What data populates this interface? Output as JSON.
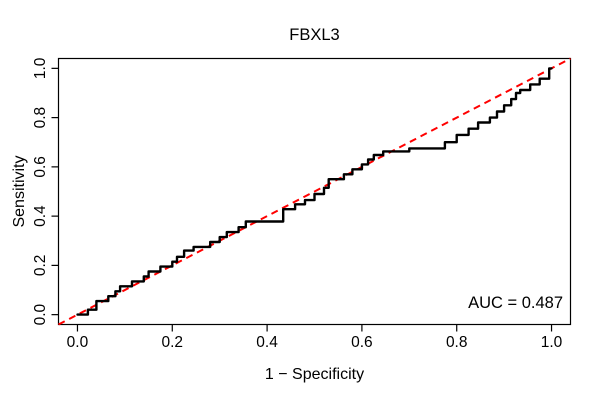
{
  "chart_data": {
    "type": "line",
    "title": "FBXL3",
    "xlabel": "1 − Specificity",
    "ylabel": "Sensitivity",
    "annotation": "AUC = 0.487",
    "xlim": [
      -0.04,
      1.04
    ],
    "ylim": [
      -0.04,
      1.04
    ],
    "xticks": [
      0.0,
      0.2,
      0.4,
      0.6,
      0.8,
      1.0
    ],
    "yticks": [
      0.0,
      0.2,
      0.4,
      0.6,
      0.8,
      1.0
    ],
    "tick_decimals": 1,
    "grid": false,
    "legend": "none",
    "colors": {
      "background": "#FFFFFF",
      "box": "#000000",
      "text": "#000000",
      "roc_curve": "#000000",
      "reference_line": "#FF0000"
    },
    "series": [
      {
        "name": "ROC step curve",
        "style": "step",
        "color": "#000000",
        "line_width": 2.4,
        "dash": null,
        "points": [
          [
            0,
            0
          ],
          [
            0.022,
            0
          ],
          [
            0.022,
            0.02
          ],
          [
            0.04,
            0.02
          ],
          [
            0.04,
            0.055
          ],
          [
            0.065,
            0.055
          ],
          [
            0.065,
            0.075
          ],
          [
            0.08,
            0.075
          ],
          [
            0.08,
            0.095
          ],
          [
            0.09,
            0.095
          ],
          [
            0.09,
            0.115
          ],
          [
            0.115,
            0.115
          ],
          [
            0.115,
            0.135
          ],
          [
            0.14,
            0.135
          ],
          [
            0.14,
            0.155
          ],
          [
            0.15,
            0.155
          ],
          [
            0.15,
            0.175
          ],
          [
            0.175,
            0.175
          ],
          [
            0.175,
            0.195
          ],
          [
            0.2,
            0.195
          ],
          [
            0.2,
            0.215
          ],
          [
            0.21,
            0.215
          ],
          [
            0.21,
            0.235
          ],
          [
            0.225,
            0.235
          ],
          [
            0.225,
            0.26
          ],
          [
            0.245,
            0.26
          ],
          [
            0.245,
            0.275
          ],
          [
            0.28,
            0.275
          ],
          [
            0.28,
            0.295
          ],
          [
            0.3,
            0.295
          ],
          [
            0.3,
            0.315
          ],
          [
            0.315,
            0.315
          ],
          [
            0.315,
            0.335
          ],
          [
            0.34,
            0.335
          ],
          [
            0.34,
            0.355
          ],
          [
            0.355,
            0.355
          ],
          [
            0.355,
            0.378
          ],
          [
            0.434,
            0.378
          ],
          [
            0.434,
            0.428
          ],
          [
            0.459,
            0.428
          ],
          [
            0.459,
            0.448
          ],
          [
            0.48,
            0.448
          ],
          [
            0.48,
            0.465
          ],
          [
            0.5,
            0.465
          ],
          [
            0.5,
            0.49
          ],
          [
            0.52,
            0.49
          ],
          [
            0.52,
            0.515
          ],
          [
            0.53,
            0.515
          ],
          [
            0.53,
            0.55
          ],
          [
            0.562,
            0.55
          ],
          [
            0.562,
            0.57
          ],
          [
            0.58,
            0.57
          ],
          [
            0.58,
            0.59
          ],
          [
            0.6,
            0.59
          ],
          [
            0.6,
            0.61
          ],
          [
            0.613,
            0.61
          ],
          [
            0.613,
            0.63
          ],
          [
            0.625,
            0.63
          ],
          [
            0.625,
            0.648
          ],
          [
            0.645,
            0.648
          ],
          [
            0.645,
            0.663
          ],
          [
            0.7,
            0.663
          ],
          [
            0.7,
            0.675
          ],
          [
            0.775,
            0.675
          ],
          [
            0.775,
            0.7
          ],
          [
            0.8,
            0.7
          ],
          [
            0.8,
            0.73
          ],
          [
            0.825,
            0.73
          ],
          [
            0.825,
            0.755
          ],
          [
            0.845,
            0.755
          ],
          [
            0.845,
            0.78
          ],
          [
            0.87,
            0.78
          ],
          [
            0.87,
            0.8
          ],
          [
            0.885,
            0.8
          ],
          [
            0.885,
            0.825
          ],
          [
            0.9,
            0.825
          ],
          [
            0.9,
            0.85
          ],
          [
            0.915,
            0.85
          ],
          [
            0.915,
            0.875
          ],
          [
            0.925,
            0.875
          ],
          [
            0.925,
            0.9
          ],
          [
            0.934,
            0.9
          ],
          [
            0.934,
            0.912
          ],
          [
            0.955,
            0.912
          ],
          [
            0.955,
            0.935
          ],
          [
            0.975,
            0.935
          ],
          [
            0.975,
            0.958
          ],
          [
            0.995,
            0.958
          ],
          [
            0.995,
            1
          ],
          [
            1,
            1
          ]
        ]
      },
      {
        "name": "chance reference diagonal",
        "style": "dashed",
        "color": "#FF0000",
        "line_width": 2,
        "dash": [
          7,
          5
        ],
        "points": [
          [
            -0.04,
            -0.04
          ],
          [
            1.04,
            1.04
          ]
        ]
      }
    ]
  }
}
